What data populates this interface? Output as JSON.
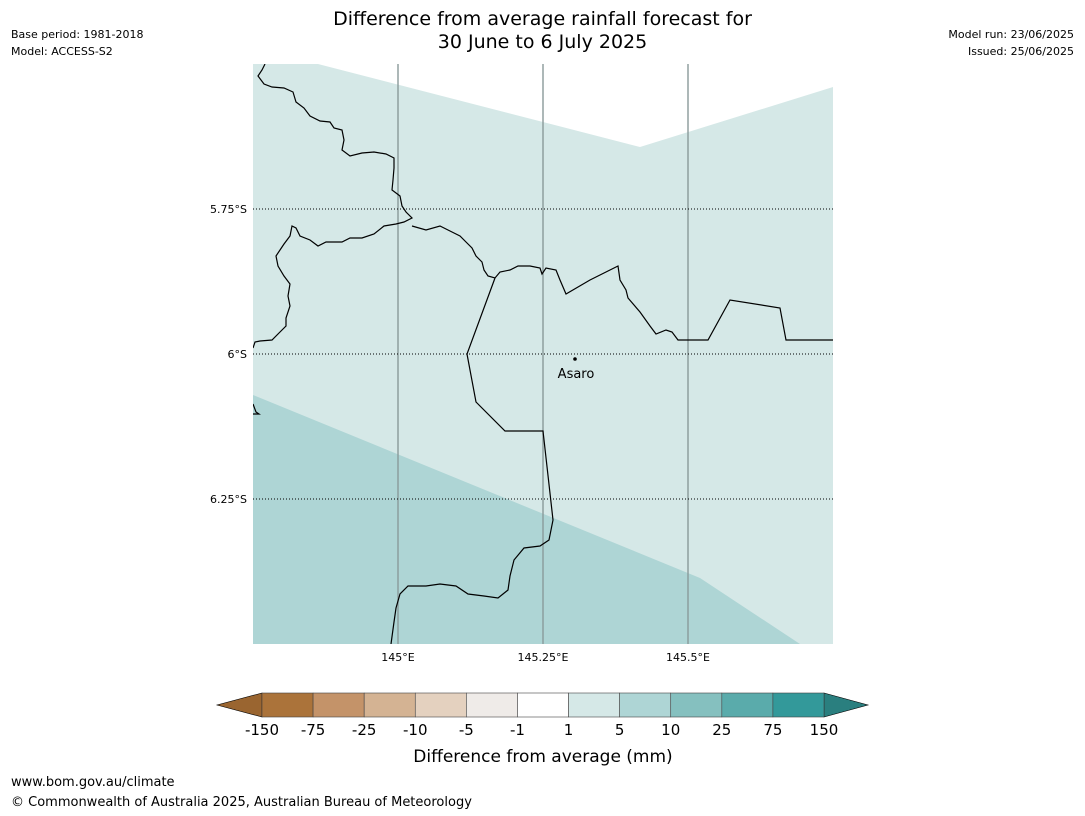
{
  "header": {
    "title_line1": "Difference from average rainfall forecast for",
    "title_line2": "30 June to 6 July 2025",
    "base_period": "Base period: 1981-2018",
    "model": "Model: ACCESS-S2",
    "model_run": "Model run: 23/06/2025",
    "issued": "Issued: 25/06/2025"
  },
  "map": {
    "lat_labels": [
      "5.75°S",
      "6°S",
      "6.25°S"
    ],
    "lon_labels": [
      "145°E",
      "145.25°E",
      "145.5°E"
    ],
    "place_name": "Asaro",
    "zones": [
      {
        "category": "1 to 5",
        "color": "#d5e8e7"
      },
      {
        "category": "5 to 10",
        "color": "#aed5d5"
      }
    ]
  },
  "colorbar": {
    "label": "Difference from average (mm)",
    "ticks": [
      "-150",
      "-75",
      "-25",
      "-10",
      "-5",
      "-1",
      "1",
      "5",
      "10",
      "25",
      "75",
      "150"
    ],
    "colors": [
      "#ab733a",
      "#c49369",
      "#d4b393",
      "#e4d1bf",
      "#efebe8",
      "#ffffff",
      "#d5e8e7",
      "#aed5d5",
      "#85c0bf",
      "#5aabab",
      "#33999a"
    ],
    "extend_low_color": "#9a6530",
    "extend_high_color": "#2a7f7f"
  },
  "footer": {
    "url": "www.bom.gov.au/climate",
    "copyright": "© Commonwealth of Australia 2025, Australian Bureau of Meteorology"
  }
}
